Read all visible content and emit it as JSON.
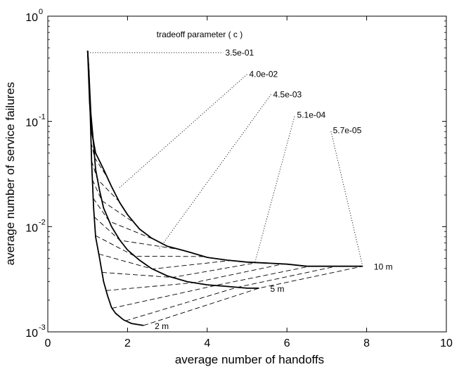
{
  "chart_data": {
    "type": "line",
    "title": "",
    "xlabel": "average number of handoffs",
    "ylabel": "average number of service failures",
    "xlim": [
      0,
      10
    ],
    "ylim": [
      0.001,
      1
    ],
    "yscale": "log",
    "grid": false,
    "x_ticks": [
      {
        "value": 0,
        "label": "0"
      },
      {
        "value": 2,
        "label": "2"
      },
      {
        "value": 4,
        "label": "4"
      },
      {
        "value": 6,
        "label": "6"
      },
      {
        "value": 8,
        "label": "8"
      },
      {
        "value": 10,
        "label": "10"
      }
    ],
    "y_ticks": [
      {
        "value": 1,
        "base": "10",
        "exp": "0"
      },
      {
        "value": 0.1,
        "base": "10",
        "exp": "-1"
      },
      {
        "value": 0.01,
        "base": "10",
        "exp": "-2"
      },
      {
        "value": 0.001,
        "base": "10",
        "exp": "-3"
      }
    ],
    "legend_title": "tradeoff parameter  ( c )",
    "series": [
      {
        "name": "10 m",
        "points": [
          [
            1.0,
            0.47
          ],
          [
            1.02,
            0.3
          ],
          [
            1.05,
            0.15
          ],
          [
            1.1,
            0.08
          ],
          [
            1.2,
            0.05
          ],
          [
            1.4,
            0.035
          ],
          [
            1.6,
            0.024
          ],
          [
            1.8,
            0.017
          ],
          [
            2.0,
            0.013
          ],
          [
            2.3,
            0.0095
          ],
          [
            2.6,
            0.0078
          ],
          [
            3.0,
            0.0065
          ],
          [
            3.5,
            0.0058
          ],
          [
            4.0,
            0.0051
          ],
          [
            4.5,
            0.0048
          ],
          [
            5.0,
            0.0046
          ],
          [
            5.5,
            0.0045
          ],
          [
            6.0,
            0.0044
          ],
          [
            6.5,
            0.0042
          ],
          [
            7.0,
            0.0042
          ],
          [
            7.5,
            0.0042
          ],
          [
            7.9,
            0.0042
          ]
        ]
      },
      {
        "name": "5 m",
        "points": [
          [
            1.0,
            0.47
          ],
          [
            1.03,
            0.3
          ],
          [
            1.08,
            0.12
          ],
          [
            1.15,
            0.06
          ],
          [
            1.2,
            0.035
          ],
          [
            1.3,
            0.022
          ],
          [
            1.4,
            0.015
          ],
          [
            1.6,
            0.01
          ],
          [
            1.8,
            0.0075
          ],
          [
            2.0,
            0.006
          ],
          [
            2.3,
            0.0048
          ],
          [
            2.6,
            0.004
          ],
          [
            3.0,
            0.0034
          ],
          [
            3.5,
            0.003
          ],
          [
            4.0,
            0.0028
          ],
          [
            4.5,
            0.0027
          ],
          [
            5.0,
            0.0026
          ],
          [
            5.3,
            0.0026
          ]
        ]
      },
      {
        "name": "2 m",
        "points": [
          [
            1.0,
            0.47
          ],
          [
            1.03,
            0.3
          ],
          [
            1.07,
            0.1
          ],
          [
            1.1,
            0.04
          ],
          [
            1.15,
            0.015
          ],
          [
            1.2,
            0.008
          ],
          [
            1.3,
            0.005
          ],
          [
            1.4,
            0.003
          ],
          [
            1.5,
            0.0022
          ],
          [
            1.6,
            0.0017
          ],
          [
            1.7,
            0.0015
          ],
          [
            1.9,
            0.0013
          ],
          [
            2.1,
            0.0012
          ],
          [
            2.4,
            0.00115
          ]
        ]
      }
    ],
    "parameter_lines": {
      "count": 15
    },
    "annotations": [
      {
        "label": "3.5e-01",
        "series_point": [
          1.0,
          0.45
        ],
        "text_at": [
          4.4,
          0.45
        ]
      },
      {
        "label": "4.0e-02",
        "series_point": [
          1.8,
          0.0235
        ],
        "text_at": [
          5.0,
          0.28
        ]
      },
      {
        "label": "4.5e-03",
        "series_point": [
          2.8,
          0.0062
        ],
        "text_at": [
          5.6,
          0.18
        ]
      },
      {
        "label": "5.1e-04",
        "series_point": [
          5.2,
          0.0046
        ],
        "text_at": [
          6.2,
          0.115
        ]
      },
      {
        "label": "5.7e-05",
        "series_point": [
          7.9,
          0.0042
        ],
        "text_at": [
          7.1,
          0.082
        ]
      }
    ]
  }
}
